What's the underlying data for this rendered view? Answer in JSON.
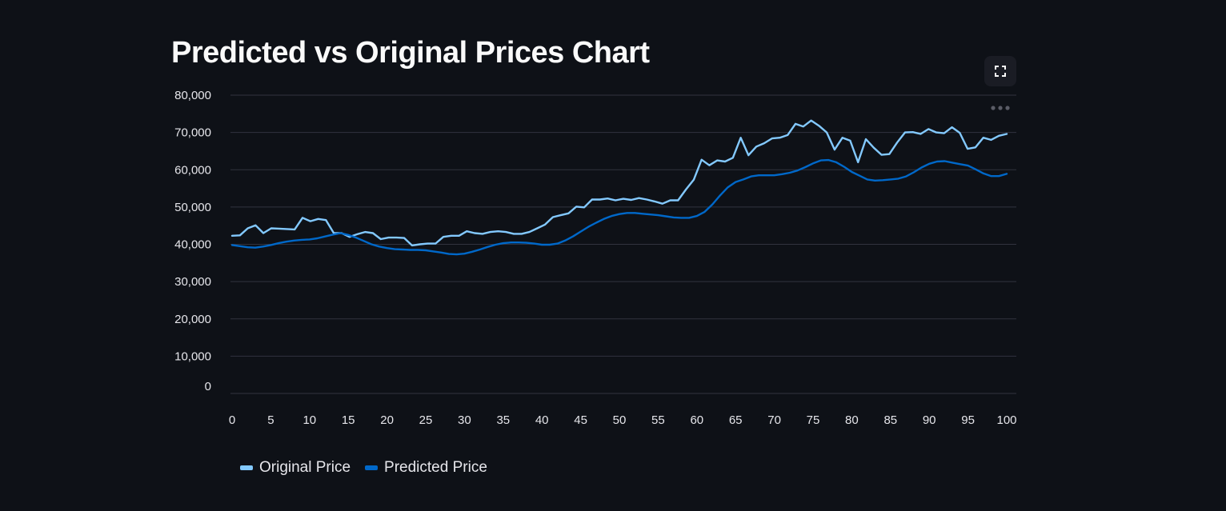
{
  "page": {
    "title": "Predicted vs Original Prices Chart"
  },
  "toolbar": {
    "fullscreen_icon": "fullscreen-icon",
    "menu_icon": "more-horizontal-icon"
  },
  "colors": {
    "background": "#0e1117",
    "grid": "#31333f",
    "original": "#83c9ff",
    "predicted": "#0068c9"
  },
  "chart_data": {
    "type": "line",
    "title": "Predicted vs Original Prices Chart",
    "xlabel": "",
    "ylabel": "",
    "xlim": [
      0,
      100
    ],
    "ylim": [
      0,
      80000
    ],
    "x_ticks": [
      0,
      5,
      10,
      15,
      20,
      25,
      30,
      35,
      40,
      45,
      50,
      55,
      60,
      65,
      70,
      75,
      80,
      85,
      90,
      95,
      100
    ],
    "x_tick_labels": [
      "0",
      "5",
      "10",
      "15",
      "20",
      "25",
      "30",
      "35",
      "40",
      "45",
      "50",
      "55",
      "60",
      "65",
      "70",
      "75",
      "80",
      "85",
      "90",
      "95",
      "100"
    ],
    "y_ticks": [
      0,
      10000,
      20000,
      30000,
      40000,
      50000,
      60000,
      70000,
      80000
    ],
    "y_tick_labels": [
      "0",
      "10,000",
      "20,000",
      "30,000",
      "40,000",
      "50,000",
      "60,000",
      "70,000",
      "80,000"
    ],
    "grid": true,
    "legend_position": "bottom-left",
    "series": [
      {
        "name": "Original Price",
        "color": "#83c9ff",
        "values": [
          42300,
          42400,
          44300,
          45100,
          43000,
          44300,
          44200,
          44100,
          44000,
          47100,
          46200,
          46800,
          46500,
          43000,
          43000,
          42000,
          42700,
          43300,
          43000,
          41400,
          41800,
          41800,
          41700,
          39700,
          40000,
          40200,
          40200,
          42000,
          42300,
          42300,
          43500,
          43000,
          42800,
          43300,
          43500,
          43300,
          42800,
          42800,
          43300,
          44300,
          45300,
          47300,
          47800,
          48300,
          50100,
          49900,
          52000,
          52000,
          52300,
          51800,
          52200,
          51900,
          52400,
          52000,
          51500,
          50900,
          51800,
          51800,
          54700,
          57300,
          62700,
          61200,
          62500,
          62200,
          63200,
          68600,
          63900,
          66200,
          67100,
          68400,
          68600,
          69300,
          72300,
          71600,
          73200,
          71800,
          70000,
          65400,
          68600,
          67800,
          62000,
          68200,
          65900,
          64000,
          64200,
          67300,
          70000,
          70100,
          69600,
          70900,
          70000,
          69800,
          71400,
          69900,
          65600,
          66000,
          68600,
          68000,
          69100,
          69600
        ]
      },
      {
        "name": "Predicted Price",
        "color": "#0068c9",
        "values": [
          39800,
          39500,
          39200,
          39100,
          39400,
          39800,
          40300,
          40700,
          41000,
          41200,
          41300,
          41600,
          42100,
          42600,
          43000,
          42500,
          41800,
          40900,
          40000,
          39400,
          39000,
          38700,
          38600,
          38500,
          38500,
          38400,
          38100,
          37800,
          37400,
          37300,
          37500,
          38000,
          38600,
          39300,
          39900,
          40300,
          40500,
          40500,
          40400,
          40200,
          39900,
          39900,
          40200,
          41000,
          42100,
          43400,
          44700,
          45800,
          46800,
          47600,
          48100,
          48400,
          48400,
          48200,
          48000,
          47800,
          47500,
          47200,
          47100,
          47100,
          47600,
          48700,
          50700,
          53100,
          55300,
          56700,
          57400,
          58200,
          58500,
          58500,
          58500,
          58800,
          59200,
          59800,
          60700,
          61700,
          62500,
          62600,
          62000,
          60800,
          59400,
          58400,
          57400,
          57100,
          57200,
          57400,
          57600,
          58200,
          59300,
          60600,
          61600,
          62200,
          62300,
          61900,
          61500,
          61100,
          60100,
          59000,
          58300,
          58300,
          58900
        ]
      }
    ]
  }
}
